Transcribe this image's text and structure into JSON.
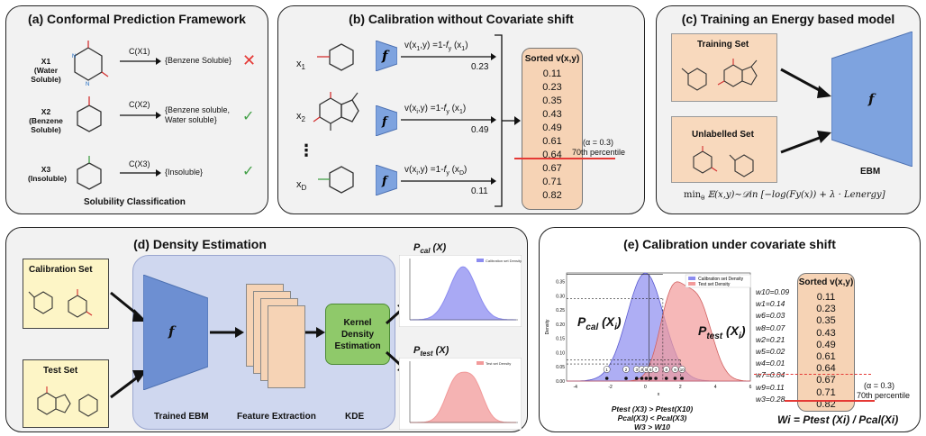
{
  "panel_a": {
    "title": "(a) Conformal Prediction Framework",
    "rows": [
      {
        "name": "X1",
        "desc": "(Water Soluble)",
        "func": "C(X1)",
        "result": "{Benzene Soluble}",
        "mark": "cross"
      },
      {
        "name": "X2",
        "desc": "(Benzene Soluble)",
        "func": "C(X2)",
        "result": "{Benzene soluble, Water soluble}",
        "mark": "check"
      },
      {
        "name": "X3",
        "desc": "(Insoluble)",
        "func": "C(X3)",
        "result": "{Insoluble}",
        "mark": "check"
      }
    ],
    "caption": "Solubility Classification",
    "cross_color": "#e53935",
    "check_color": "#43a047"
  },
  "panel_b": {
    "title": "(b) Calibration without Covariate shift",
    "inputs": [
      {
        "label": "x",
        "sub": "1",
        "score": "v(x",
        "score_sub": "1",
        "score_tail": ",y) =1-",
        "fy": "f",
        "fy_sub": "y",
        "arg": "(x",
        "arg_sub": "1",
        "arg_tail": ")",
        "value": "0.23"
      },
      {
        "label": "x",
        "sub": "2",
        "score": "v(x",
        "score_sub": "i",
        "score_tail": ",y) =1-",
        "fy": "f",
        "fy_sub": "y",
        "arg": "(x",
        "arg_sub": "1",
        "arg_tail": ")",
        "value": "0.49"
      },
      {
        "label": "x",
        "sub": "D",
        "score": "v(x",
        "score_sub": "i",
        "score_tail": ",y) =1-",
        "fy": "f",
        "fy_sub": "y",
        "arg": "(x",
        "arg_sub": "D",
        "arg_tail": ")",
        "value": "0.11"
      }
    ],
    "dots": "⋮",
    "model": "f",
    "sorted_title": "Sorted v(x,y)",
    "sorted_values": [
      "0.11",
      "0.23",
      "0.35",
      "0.43",
      "0.49",
      "0.61",
      "0.64",
      "0.67",
      "0.71",
      "0.82"
    ],
    "alpha": "(α = 0.3)",
    "percentile": "70th percentile"
  },
  "panel_c": {
    "title": "(c) Training an Energy based model",
    "training": "Training Set",
    "unlabelled": "Unlabelled Set",
    "model": "f",
    "ebm": "EBM",
    "formula": "min",
    "formula_sub": "θ",
    "formula_rest": "𝔼(x,y)∼𝒟in [−log(Fy(x)) + λ · Lenergy]"
  },
  "panel_d": {
    "title": "(d) Density Estimation",
    "calib": "Calibration Set",
    "test": "Test Set",
    "model": "f",
    "trained": "Trained EBM",
    "feature": "Feature Extraction",
    "kde_box": "Kernel Density Estimation",
    "kde": "KDE",
    "pcal": "P",
    "pcal_sub": "cal",
    "pcal_arg": "(X)",
    "ptest": "P",
    "ptest_sub": "test",
    "ptest_arg": "(X)",
    "legend_cal": "Calibration set Density",
    "legend_test": "Test set Density",
    "cal_color": "#8c8cf0",
    "test_color": "#f29a9a"
  },
  "panel_e": {
    "title": "(e) Calibration under covariate shift",
    "legend_cal": "Calibration set Density",
    "legend_test": "Test set Density",
    "ylabel": "Density",
    "xlabel": "x",
    "yticks": [
      "0.35",
      "0.30",
      "0.25",
      "0.20",
      "0.15",
      "0.10",
      "0.05",
      "0.00"
    ],
    "xticks": [
      "-4",
      "-2",
      "0",
      "2",
      "4",
      "6"
    ],
    "pcal_label": "P",
    "pcal_sub": "cal",
    "pcal_arg": "(X",
    "pcal_argsub": "i",
    "ptest_label": "P",
    "ptest_sub": "test",
    "ptest_arg": "(X",
    "ptest_argsub": "i",
    "cond1": "Ptest (X3) > Ptest(X10)",
    "cond2": "Pcal(X3) < Pcal(X3)",
    "cond3": "W3 > W10",
    "sorted_title": "Sorted v(x,y)",
    "weights": [
      "w10=0.09",
      "w1=0.14",
      "w6=0.03",
      "w8=0.07",
      "w2=0.21",
      "w5=0.02",
      "w4=0.01",
      "w7=0.04",
      "w9=0.11",
      "w3=0.28"
    ],
    "sorted_values": [
      "0.11",
      "0.23",
      "0.35",
      "0.43",
      "0.49",
      "0.61",
      "0.64",
      "0.67",
      "0.71",
      "0.82"
    ],
    "alpha": "(α = 0.3)",
    "percentile": "70th percentile",
    "formula": "Wi = Ptest (Xi) / Pcal(Xi)",
    "points": [
      "1",
      "2",
      "3",
      "4",
      "5",
      "6",
      "7",
      "8",
      "9",
      "10"
    ]
  }
}
